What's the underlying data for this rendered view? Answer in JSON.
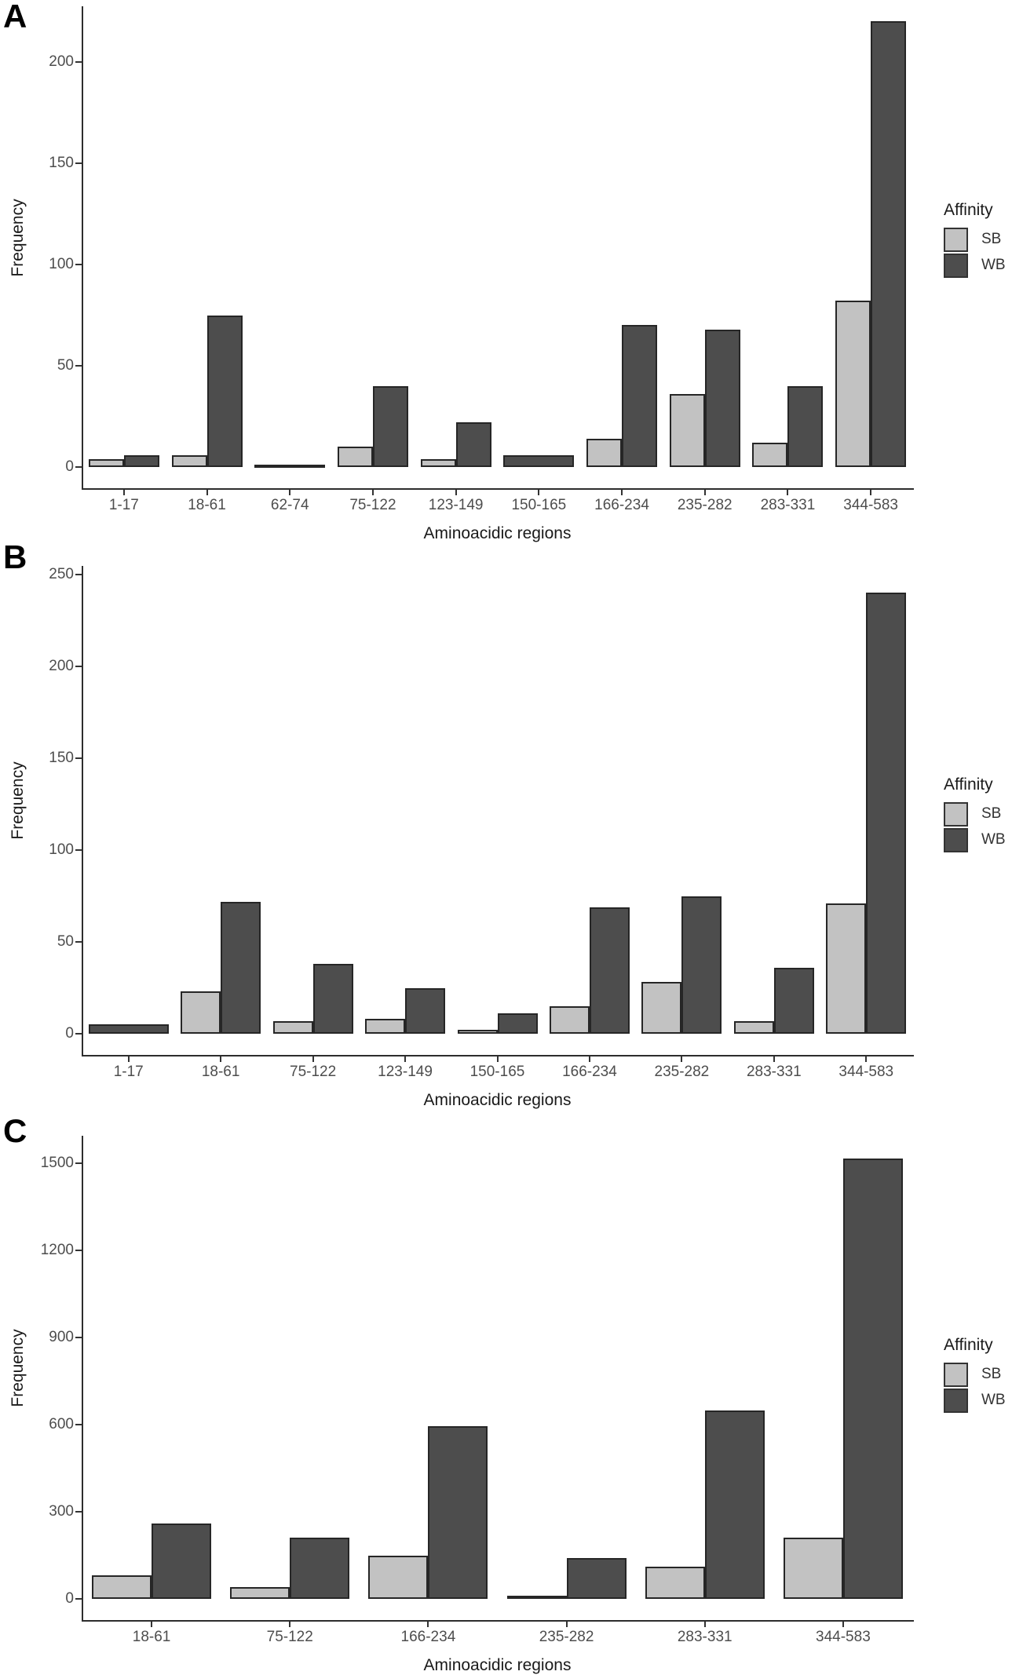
{
  "colors": {
    "sb_fill": "#c2c2c2",
    "wb_fill": "#4d4d4d",
    "bar_stroke": "#262626",
    "axis_line": "#2d2d2d",
    "tick_text": "#4d4d4d",
    "title_text": "#1a1a1a"
  },
  "chart_data": [
    {
      "type": "bar",
      "panel_label": "A",
      "xlabel": "Aminoacidic regions",
      "ylabel": "Frequency",
      "legend": {
        "title": "Affinity",
        "series_labels": [
          "SB",
          "WB"
        ]
      },
      "legend_position": "right",
      "grid": false,
      "categories": [
        "1-17",
        "18-61",
        "62-74",
        "75-122",
        "123-149",
        "150-165",
        "166-234",
        "235-282",
        "283-331",
        "344-583"
      ],
      "series": [
        {
          "name": "SB",
          "values": [
            4,
            6,
            null,
            10,
            4,
            null,
            14,
            36,
            12,
            82
          ]
        },
        {
          "name": "WB",
          "values": [
            6,
            75,
            1,
            40,
            22,
            6,
            70,
            68,
            40,
            220
          ]
        }
      ],
      "yticks": [
        0,
        50,
        100,
        150,
        200
      ],
      "ylim": [
        0,
        230
      ]
    },
    {
      "type": "bar",
      "panel_label": "B",
      "xlabel": "Aminoacidic regions",
      "ylabel": "Frequency",
      "legend": {
        "title": "Affinity",
        "series_labels": [
          "SB",
          "WB"
        ]
      },
      "legend_position": "right",
      "grid": false,
      "categories": [
        "1-17",
        "18-61",
        "75-122",
        "123-149",
        "150-165",
        "166-234",
        "235-282",
        "283-331",
        "344-583"
      ],
      "series": [
        {
          "name": "SB",
          "values": [
            null,
            23,
            7,
            8,
            2,
            15,
            28,
            7,
            71
          ]
        },
        {
          "name": "WB",
          "values": [
            5,
            72,
            38,
            25,
            11,
            69,
            75,
            36,
            240
          ]
        }
      ],
      "yticks": [
        0,
        50,
        100,
        150,
        200,
        250
      ],
      "ylim": [
        0,
        252
      ]
    },
    {
      "type": "bar",
      "panel_label": "C",
      "xlabel": "Aminoacidic regions",
      "ylabel": "Frequency",
      "legend": {
        "title": "Affinity",
        "series_labels": [
          "SB",
          "WB"
        ]
      },
      "legend_position": "right",
      "grid": false,
      "categories": [
        "18-61",
        "75-122",
        "166-234",
        "235-282",
        "283-331",
        "344-583"
      ],
      "series": [
        {
          "name": "SB",
          "values": [
            80,
            40,
            150,
            10,
            110,
            210
          ]
        },
        {
          "name": "WB",
          "values": [
            260,
            210,
            595,
            140,
            650,
            1515
          ]
        }
      ],
      "yticks": [
        0,
        300,
        600,
        900,
        1200,
        1500
      ],
      "ylim": [
        0,
        1560
      ]
    }
  ]
}
